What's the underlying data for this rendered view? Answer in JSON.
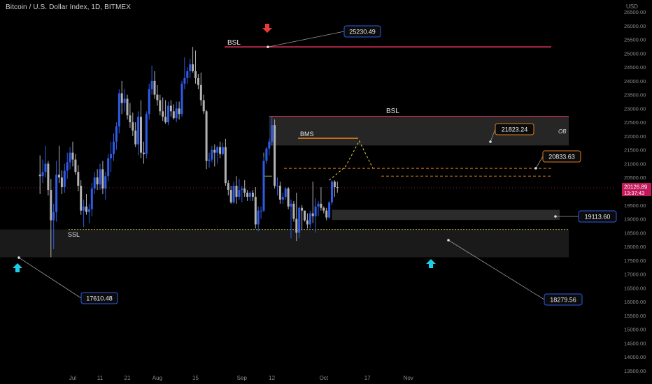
{
  "header": {
    "title": "Bitcoin / U.S. Dollar Index, 1D, BITMEX",
    "currency": "USD"
  },
  "colors": {
    "background": "#000000",
    "bull": "#2e5be8",
    "bear": "#b2b2b2",
    "bsl": "#e0305a",
    "bms": "#e07d1e",
    "ssl": "#b6a93a",
    "cyan": "#1ccfe8",
    "red_arrow": "#e63939",
    "callout_blue": "#2e5be8",
    "callout_orange": "#e07d1e",
    "price_tag": "#c2185b"
  },
  "labels": {
    "bsl_top": "BSL",
    "bsl_mid": "BSL",
    "bms": "BMS",
    "ssl": "SSL",
    "ob": "OB"
  },
  "callouts": {
    "high": "25230.49",
    "low_left": "17610.48",
    "low_right": "18279.56",
    "target_1": "21823.24",
    "target_2": "20833.63",
    "support": "19113.60"
  },
  "current_price": {
    "value": "20126.89",
    "countdown": "13:37:43"
  },
  "chart_data": {
    "type": "candlestick",
    "title": "Bitcoin / U.S. Dollar Index, 1D, BITMEX",
    "y_ticks": [
      "26500.00",
      "26000.00",
      "25500.00",
      "25000.00",
      "24500.00",
      "24000.00",
      "23500.00",
      "23000.00",
      "22500.00",
      "22000.00",
      "21500.00",
      "21000.00",
      "20500.00",
      "20000.00",
      "19500.00",
      "19000.00",
      "18500.00",
      "18000.00",
      "17500.00",
      "17000.00",
      "16500.00",
      "16000.00",
      "15500.00",
      "15000.00",
      "14500.00",
      "14000.00",
      "13500.00"
    ],
    "x_ticks": [
      "Jul",
      "11",
      "21",
      "Aug",
      "15",
      "Sep",
      "12",
      "Oct",
      "17",
      "Nov"
    ],
    "ylim": [
      13300,
      26700
    ],
    "levels": {
      "bsl_top": 25230,
      "ob_top": 22720,
      "ob_bottom": 21660,
      "bms": 21920,
      "equilibrium": 20830,
      "mid_dashed": 20550,
      "ssl": 18620,
      "discount_zone_top": 18620,
      "discount_zone_bottom": 17610,
      "support_top": 19330,
      "support_bottom": 18960
    },
    "projection": [
      {
        "x": "2022-10-03",
        "y": 20400
      },
      {
        "x": "2022-10-09",
        "y": 20900
      },
      {
        "x": "2022-10-14",
        "y": 21823.24
      },
      {
        "x": "2022-10-19",
        "y": 20833.63
      }
    ],
    "candles": [
      {
        "d": "2022-06-19",
        "o": 20600,
        "h": 21300,
        "l": 19900,
        "c": 20550
      },
      {
        "d": "2022-06-20",
        "o": 20550,
        "h": 21150,
        "l": 20300,
        "c": 20700
      },
      {
        "d": "2022-06-21",
        "o": 20700,
        "h": 21650,
        "l": 20500,
        "c": 21000
      },
      {
        "d": "2022-06-22",
        "o": 21000,
        "h": 21100,
        "l": 19850,
        "c": 20050
      },
      {
        "d": "2022-06-23",
        "o": 20050,
        "h": 20450,
        "l": 17610,
        "c": 18950
      },
      {
        "d": "2022-06-24",
        "o": 18950,
        "h": 19550,
        "l": 17900,
        "c": 19250
      },
      {
        "d": "2022-06-25",
        "o": 19250,
        "h": 21100,
        "l": 18900,
        "c": 20600
      },
      {
        "d": "2022-06-26",
        "o": 20600,
        "h": 21650,
        "l": 20300,
        "c": 20500
      },
      {
        "d": "2022-06-27",
        "o": 20500,
        "h": 20750,
        "l": 19900,
        "c": 20150
      },
      {
        "d": "2022-06-28",
        "o": 20150,
        "h": 21000,
        "l": 19950,
        "c": 20750
      },
      {
        "d": "2022-06-29",
        "o": 20750,
        "h": 21400,
        "l": 20450,
        "c": 21050
      },
      {
        "d": "2022-06-30",
        "o": 21050,
        "h": 21600,
        "l": 20800,
        "c": 21400
      },
      {
        "d": "2022-07-01",
        "o": 21400,
        "h": 21800,
        "l": 20900,
        "c": 21150
      },
      {
        "d": "2022-07-02",
        "o": 21150,
        "h": 21350,
        "l": 20600,
        "c": 20700
      },
      {
        "d": "2022-07-03",
        "o": 20700,
        "h": 20950,
        "l": 20000,
        "c": 20200
      },
      {
        "d": "2022-07-04",
        "o": 20200,
        "h": 20400,
        "l": 19150,
        "c": 19300
      },
      {
        "d": "2022-07-05",
        "o": 19300,
        "h": 19700,
        "l": 18700,
        "c": 19450
      },
      {
        "d": "2022-07-06",
        "o": 19450,
        "h": 19900,
        "l": 19150,
        "c": 19250
      },
      {
        "d": "2022-07-07",
        "o": 19250,
        "h": 19550,
        "l": 18850,
        "c": 19350
      },
      {
        "d": "2022-07-08",
        "o": 19350,
        "h": 20300,
        "l": 19100,
        "c": 20100
      },
      {
        "d": "2022-07-09",
        "o": 20100,
        "h": 20700,
        "l": 19900,
        "c": 20500
      },
      {
        "d": "2022-07-10",
        "o": 20500,
        "h": 20800,
        "l": 20050,
        "c": 20250
      },
      {
        "d": "2022-07-11",
        "o": 20250,
        "h": 21000,
        "l": 20050,
        "c": 20800
      },
      {
        "d": "2022-07-12",
        "o": 20800,
        "h": 21100,
        "l": 19900,
        "c": 20100
      },
      {
        "d": "2022-07-13",
        "o": 20100,
        "h": 20700,
        "l": 19700,
        "c": 20550
      },
      {
        "d": "2022-07-14",
        "o": 20550,
        "h": 21350,
        "l": 20350,
        "c": 21200
      },
      {
        "d": "2022-07-15",
        "o": 21200,
        "h": 21800,
        "l": 20700,
        "c": 21350
      },
      {
        "d": "2022-07-16",
        "o": 21350,
        "h": 22100,
        "l": 21100,
        "c": 21800
      },
      {
        "d": "2022-07-17",
        "o": 21800,
        "h": 22500,
        "l": 21500,
        "c": 22350
      },
      {
        "d": "2022-07-18",
        "o": 22350,
        "h": 23700,
        "l": 22100,
        "c": 23550
      },
      {
        "d": "2022-07-19",
        "o": 23550,
        "h": 24000,
        "l": 22800,
        "c": 23200
      },
      {
        "d": "2022-07-20",
        "o": 23200,
        "h": 23700,
        "l": 22900,
        "c": 23350
      },
      {
        "d": "2022-07-21",
        "o": 23350,
        "h": 23500,
        "l": 22600,
        "c": 22750
      },
      {
        "d": "2022-07-22",
        "o": 22750,
        "h": 23200,
        "l": 22300,
        "c": 22500
      },
      {
        "d": "2022-07-23",
        "o": 22500,
        "h": 22850,
        "l": 22000,
        "c": 22200
      },
      {
        "d": "2022-07-24",
        "o": 22200,
        "h": 22500,
        "l": 21600,
        "c": 21700
      },
      {
        "d": "2022-07-25",
        "o": 21700,
        "h": 22900,
        "l": 21300,
        "c": 22700
      },
      {
        "d": "2022-07-26",
        "o": 22700,
        "h": 23300,
        "l": 21200,
        "c": 21400
      },
      {
        "d": "2022-07-27",
        "o": 21400,
        "h": 21800,
        "l": 21000,
        "c": 21350
      },
      {
        "d": "2022-07-28",
        "o": 21350,
        "h": 22900,
        "l": 21200,
        "c": 22800
      },
      {
        "d": "2022-07-29",
        "o": 22800,
        "h": 23900,
        "l": 22600,
        "c": 23700
      },
      {
        "d": "2022-07-30",
        "o": 23700,
        "h": 24550,
        "l": 23500,
        "c": 24000
      },
      {
        "d": "2022-07-31",
        "o": 24000,
        "h": 24350,
        "l": 23350,
        "c": 23500
      },
      {
        "d": "2022-08-01",
        "o": 23500,
        "h": 23850,
        "l": 23100,
        "c": 23300
      },
      {
        "d": "2022-08-02",
        "o": 23300,
        "h": 23500,
        "l": 22750,
        "c": 22900
      },
      {
        "d": "2022-08-03",
        "o": 22900,
        "h": 23400,
        "l": 22550,
        "c": 22700
      },
      {
        "d": "2022-08-04",
        "o": 22700,
        "h": 23300,
        "l": 22450,
        "c": 22500
      },
      {
        "d": "2022-08-05",
        "o": 22500,
        "h": 23250,
        "l": 22400,
        "c": 23100
      },
      {
        "d": "2022-08-06",
        "o": 23100,
        "h": 23300,
        "l": 22700,
        "c": 22900
      },
      {
        "d": "2022-08-07",
        "o": 22900,
        "h": 23150,
        "l": 22600,
        "c": 22650
      },
      {
        "d": "2022-08-08",
        "o": 22650,
        "h": 23250,
        "l": 22500,
        "c": 23000
      },
      {
        "d": "2022-08-09",
        "o": 23000,
        "h": 23250,
        "l": 22600,
        "c": 22800
      },
      {
        "d": "2022-08-10",
        "o": 22800,
        "h": 24000,
        "l": 22700,
        "c": 23900
      },
      {
        "d": "2022-08-11",
        "o": 23900,
        "h": 24850,
        "l": 23700,
        "c": 24100
      },
      {
        "d": "2022-08-12",
        "o": 24100,
        "h": 24500,
        "l": 23900,
        "c": 24350
      },
      {
        "d": "2022-08-13",
        "o": 24350,
        "h": 24800,
        "l": 24100,
        "c": 24600
      },
      {
        "d": "2022-08-14",
        "o": 24600,
        "h": 25230,
        "l": 24300,
        "c": 24350
      },
      {
        "d": "2022-08-15",
        "o": 24350,
        "h": 25100,
        "l": 23900,
        "c": 24100
      },
      {
        "d": "2022-08-16",
        "o": 24100,
        "h": 24250,
        "l": 23700,
        "c": 23850
      },
      {
        "d": "2022-08-17",
        "o": 23850,
        "h": 24300,
        "l": 23100,
        "c": 23300
      },
      {
        "d": "2022-08-18",
        "o": 23300,
        "h": 23500,
        "l": 22800,
        "c": 22900
      },
      {
        "d": "2022-08-19",
        "o": 22900,
        "h": 22950,
        "l": 20800,
        "c": 21100
      },
      {
        "d": "2022-08-20",
        "o": 21100,
        "h": 21400,
        "l": 20850,
        "c": 21150
      },
      {
        "d": "2022-08-21",
        "o": 21150,
        "h": 21650,
        "l": 21050,
        "c": 21500
      },
      {
        "d": "2022-08-22",
        "o": 21500,
        "h": 21700,
        "l": 20900,
        "c": 21400
      },
      {
        "d": "2022-08-23",
        "o": 21400,
        "h": 21650,
        "l": 21000,
        "c": 21600
      },
      {
        "d": "2022-08-24",
        "o": 21600,
        "h": 21800,
        "l": 21200,
        "c": 21350
      },
      {
        "d": "2022-08-25",
        "o": 21350,
        "h": 21750,
        "l": 21300,
        "c": 21600
      },
      {
        "d": "2022-08-26",
        "o": 21600,
        "h": 21900,
        "l": 20200,
        "c": 20300
      },
      {
        "d": "2022-08-27",
        "o": 20300,
        "h": 20400,
        "l": 19850,
        "c": 20050
      },
      {
        "d": "2022-08-28",
        "o": 20050,
        "h": 20200,
        "l": 19550,
        "c": 19600
      },
      {
        "d": "2022-08-29",
        "o": 19600,
        "h": 20350,
        "l": 19550,
        "c": 20200
      },
      {
        "d": "2022-08-30",
        "o": 20200,
        "h": 20550,
        "l": 19550,
        "c": 19800
      },
      {
        "d": "2022-08-31",
        "o": 19800,
        "h": 20450,
        "l": 19700,
        "c": 20050
      },
      {
        "d": "2022-09-01",
        "o": 20050,
        "h": 20200,
        "l": 19600,
        "c": 20100
      },
      {
        "d": "2022-09-02",
        "o": 20100,
        "h": 20400,
        "l": 19800,
        "c": 19950
      },
      {
        "d": "2022-09-03",
        "o": 19950,
        "h": 20050,
        "l": 19650,
        "c": 19800
      },
      {
        "d": "2022-09-04",
        "o": 19800,
        "h": 20000,
        "l": 19650,
        "c": 19950
      },
      {
        "d": "2022-09-05",
        "o": 19950,
        "h": 20050,
        "l": 19650,
        "c": 19800
      },
      {
        "d": "2022-09-06",
        "o": 19800,
        "h": 20150,
        "l": 18650,
        "c": 18800
      },
      {
        "d": "2022-09-07",
        "o": 18800,
        "h": 19450,
        "l": 18550,
        "c": 19300
      },
      {
        "d": "2022-09-08",
        "o": 19300,
        "h": 19450,
        "l": 19000,
        "c": 19300
      },
      {
        "d": "2022-09-09",
        "o": 19300,
        "h": 21250,
        "l": 19250,
        "c": 21100
      },
      {
        "d": "2022-09-10",
        "o": 21100,
        "h": 21600,
        "l": 21000,
        "c": 21550
      },
      {
        "d": "2022-09-11",
        "o": 21550,
        "h": 21900,
        "l": 21300,
        "c": 21800
      },
      {
        "d": "2022-09-12",
        "o": 21800,
        "h": 22720,
        "l": 21650,
        "c": 22400
      },
      {
        "d": "2022-09-13",
        "o": 22400,
        "h": 22600,
        "l": 20100,
        "c": 20200
      },
      {
        "d": "2022-09-14",
        "o": 20200,
        "h": 20500,
        "l": 19850,
        "c": 20200
      },
      {
        "d": "2022-09-15",
        "o": 20200,
        "h": 20350,
        "l": 19550,
        "c": 19700
      },
      {
        "d": "2022-09-16",
        "o": 19700,
        "h": 19950,
        "l": 19550,
        "c": 19800
      },
      {
        "d": "2022-09-17",
        "o": 19800,
        "h": 20150,
        "l": 19700,
        "c": 20100
      },
      {
        "d": "2022-09-18",
        "o": 20100,
        "h": 20150,
        "l": 19350,
        "c": 19450
      },
      {
        "d": "2022-09-19",
        "o": 19450,
        "h": 19700,
        "l": 18300,
        "c": 19550
      },
      {
        "d": "2022-09-20",
        "o": 19550,
        "h": 19650,
        "l": 18900,
        "c": 19000
      },
      {
        "d": "2022-09-21",
        "o": 19000,
        "h": 19950,
        "l": 18200,
        "c": 18500
      },
      {
        "d": "2022-09-22",
        "o": 18500,
        "h": 19450,
        "l": 18300,
        "c": 19400
      },
      {
        "d": "2022-09-23",
        "o": 19400,
        "h": 19500,
        "l": 18600,
        "c": 19300
      },
      {
        "d": "2022-09-24",
        "o": 19300,
        "h": 19300,
        "l": 18900,
        "c": 18950
      },
      {
        "d": "2022-09-25",
        "o": 18950,
        "h": 19200,
        "l": 18650,
        "c": 18800
      },
      {
        "d": "2022-09-26",
        "o": 18800,
        "h": 19300,
        "l": 18650,
        "c": 19200
      },
      {
        "d": "2022-09-27",
        "o": 19200,
        "h": 20350,
        "l": 18850,
        "c": 19100
      },
      {
        "d": "2022-09-28",
        "o": 19100,
        "h": 19750,
        "l": 18500,
        "c": 19450
      },
      {
        "d": "2022-09-29",
        "o": 19450,
        "h": 19650,
        "l": 19100,
        "c": 19550
      },
      {
        "d": "2022-09-30",
        "o": 19550,
        "h": 20150,
        "l": 19300,
        "c": 19400
      },
      {
        "d": "2022-10-01",
        "o": 19400,
        "h": 19450,
        "l": 19200,
        "c": 19300
      },
      {
        "d": "2022-10-02",
        "o": 19300,
        "h": 19400,
        "l": 18950,
        "c": 19050
      },
      {
        "d": "2022-10-03",
        "o": 19050,
        "h": 19650,
        "l": 19000,
        "c": 19600
      },
      {
        "d": "2022-10-04",
        "o": 19600,
        "h": 20400,
        "l": 19500,
        "c": 20350
      },
      {
        "d": "2022-10-05",
        "o": 20350,
        "h": 20400,
        "l": 19800,
        "c": 20150
      },
      {
        "d": "2022-10-06",
        "o": 20150,
        "h": 20350,
        "l": 19950,
        "c": 20127
      }
    ]
  }
}
